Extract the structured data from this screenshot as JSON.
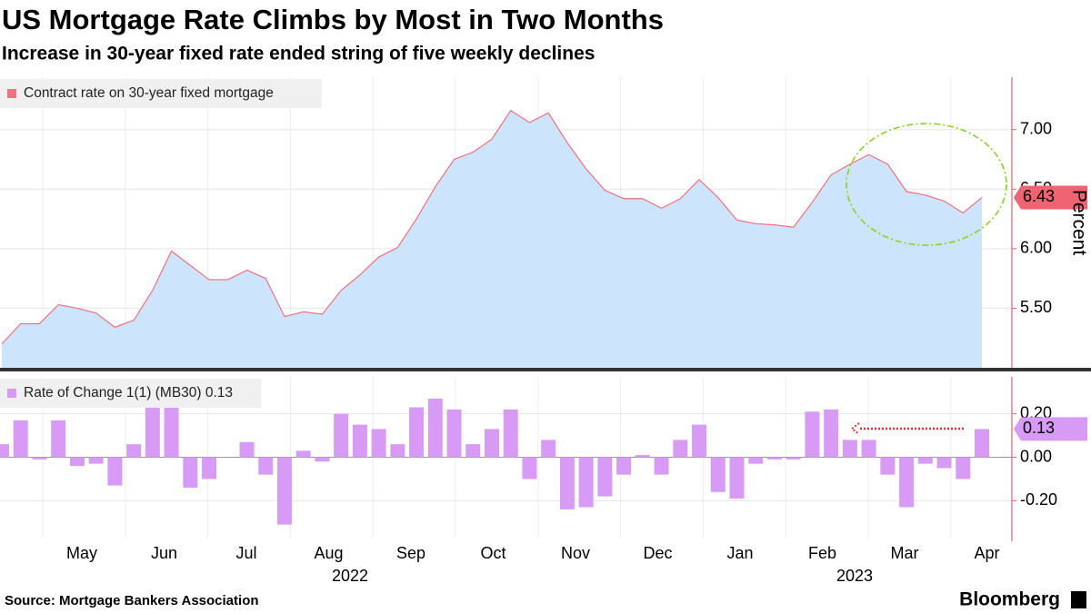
{
  "chart_data": [
    {
      "type": "area",
      "title": "US Mortgage Rate Climbs by Most in Two Months",
      "subtitle": "Increase in 30-year fixed rate ended string of five weekly declines",
      "y_axis_label": "Percent",
      "series": [
        {
          "name": "Contract rate on 30-year fixed mortgage",
          "color": "#f0707e",
          "fill": "#cde5fc",
          "values": [
            5.2,
            5.37,
            5.37,
            5.53,
            5.5,
            5.46,
            5.34,
            5.4,
            5.65,
            5.98,
            5.86,
            5.74,
            5.74,
            5.82,
            5.75,
            5.43,
            5.47,
            5.45,
            5.65,
            5.78,
            5.93,
            6.01,
            6.25,
            6.52,
            6.75,
            6.81,
            6.92,
            7.16,
            7.06,
            7.14,
            6.89,
            6.67,
            6.49,
            6.42,
            6.42,
            6.34,
            6.42,
            6.58,
            6.43,
            6.24,
            6.21,
            6.2,
            6.18,
            6.39,
            6.62,
            6.71,
            6.79,
            6.71,
            6.48,
            6.45,
            6.4,
            6.3,
            6.43
          ]
        }
      ],
      "ylim": [
        5.0,
        7.44
      ],
      "yticks": [
        {
          "value": 5.5,
          "label": "5.50"
        },
        {
          "value": 6.0,
          "label": "6.00"
        },
        {
          "value": 6.5,
          "label": "6.50"
        },
        {
          "value": 7.0,
          "label": "7.00"
        }
      ]
    },
    {
      "type": "bar",
      "series": [
        {
          "name": "Rate of Change 1(1) (MB30) 0.13",
          "color": "#d89bf5",
          "values": [
            0.06,
            0.17,
            -0.01,
            0.17,
            -0.04,
            -0.03,
            -0.13,
            0.06,
            0.25,
            0.26,
            -0.14,
            -0.1,
            0,
            0.07,
            -0.08,
            -0.31,
            0.03,
            -0.02,
            0.2,
            0.15,
            0.13,
            0.06,
            0.23,
            0.27,
            0.22,
            0.06,
            0.13,
            0.22,
            -0.1,
            0.08,
            -0.24,
            -0.23,
            -0.18,
            -0.08,
            0.01,
            -0.08,
            0.08,
            0.15,
            -0.16,
            -0.19,
            -0.03,
            -0.01,
            -0.01,
            0.21,
            0.22,
            0.08,
            0.08,
            -0.08,
            -0.23,
            -0.03,
            -0.05,
            -0.1,
            0.13
          ]
        }
      ],
      "ylim": [
        -0.37,
        0.37
      ],
      "yticks": [
        {
          "value": -0.2,
          "label": "-0.20"
        },
        {
          "value": 0,
          "label": "0.00"
        },
        {
          "value": 0.2,
          "label": "0.20"
        }
      ]
    }
  ],
  "x_axis": {
    "months": [
      "May",
      "Jun",
      "Jul",
      "Aug",
      "Sep",
      "Oct",
      "Nov",
      "Dec",
      "Jan",
      "Feb",
      "Mar",
      "Apr"
    ],
    "years": [
      "2022",
      "2023"
    ]
  },
  "source": "Source: Mortgage Bankers Association",
  "brand": "Bloomberg"
}
